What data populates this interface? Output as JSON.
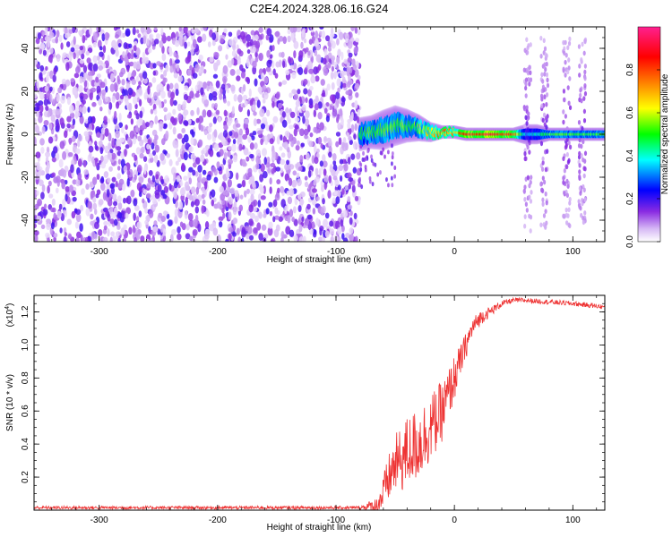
{
  "title": "C2E4.2024.328.06.16.G24",
  "colorbar": {
    "label": "Normalized spectral amplitude",
    "ticks": [
      "0.0",
      "0.2",
      "0.4",
      "0.6",
      "0.8"
    ],
    "tick_values": [
      0.0,
      0.2,
      0.4,
      0.6,
      0.8
    ],
    "range": [
      0,
      1
    ],
    "colors": [
      "#ffffff",
      "#8a2be2",
      "#0000ff",
      "#00ffff",
      "#00ff00",
      "#ffff00",
      "#ff8000",
      "#ff0000",
      "#ff0080"
    ]
  },
  "chart_data": [
    {
      "type": "heatmap",
      "xlabel": "Height of straight line (km)",
      "ylabel": "Frequency (Hz)",
      "xlim": [
        -355,
        127
      ],
      "ylim": [
        -50,
        50
      ],
      "xticks": [
        -300,
        -200,
        -100,
        0,
        100
      ],
      "xtick_labels": [
        "-300",
        "-200",
        "-100",
        "0",
        "100"
      ],
      "yticks": [
        -40,
        -20,
        0,
        20,
        40
      ],
      "ytick_labels": [
        "-40",
        "-20",
        "0",
        "20",
        "40"
      ],
      "noise_region_x": [
        -355,
        -80
      ],
      "signal_band": {
        "x": [
          -80,
          -70,
          -60,
          -50,
          -40,
          -30,
          -20,
          -10,
          0,
          10,
          30,
          50,
          60,
          70,
          80,
          100,
          127
        ],
        "center_freq": [
          0,
          1,
          2,
          4,
          4,
          3,
          1,
          1,
          1,
          0,
          0,
          0,
          0,
          0,
          0,
          0,
          0
        ],
        "half_width": [
          5,
          5,
          6,
          6,
          5,
          4,
          3,
          2,
          2,
          2,
          2,
          2,
          3,
          3,
          2,
          2,
          2
        ],
        "amplitude": [
          0.45,
          0.5,
          0.5,
          0.55,
          0.5,
          0.55,
          0.65,
          0.7,
          0.7,
          0.85,
          0.9,
          0.85,
          0.35,
          0.4,
          0.5,
          0.5,
          0.5
        ]
      },
      "vertical_streaks_x": [
        62,
        76,
        95,
        108
      ]
    },
    {
      "type": "line",
      "xlabel": "Height of straight line (km)",
      "ylabel": "SNR (10 * v/v)",
      "y_multiplier_label": "(x10",
      "y_multiplier_exponent": "4",
      "y_multiplier_suffix": ")",
      "xlim": [
        -355,
        127
      ],
      "ylim": [
        0,
        1.3
      ],
      "xticks": [
        -300,
        -200,
        -100,
        0,
        100
      ],
      "xtick_labels": [
        "-300",
        "-200",
        "-100",
        "0",
        "100"
      ],
      "yticks": [
        0.2,
        0.4,
        0.6,
        0.8,
        1.0,
        1.2
      ],
      "ytick_labels": [
        "0.2",
        "0.4",
        "0.6",
        "0.8",
        "1.0",
        "1.2"
      ],
      "line_color": "#ee3333",
      "series": [
        {
          "x": [
            -355,
            -100,
            -80,
            -65,
            -60,
            -55,
            -50,
            -45,
            -40,
            -35,
            -30,
            -25,
            -20,
            -15,
            -10,
            -5,
            0,
            5,
            10,
            15,
            20,
            25,
            30,
            40,
            50,
            60,
            80,
            100,
            127
          ],
          "values": [
            0.015,
            0.015,
            0.015,
            0.03,
            0.1,
            0.2,
            0.28,
            0.3,
            0.35,
            0.38,
            0.4,
            0.45,
            0.5,
            0.55,
            0.6,
            0.7,
            0.8,
            0.9,
            1.0,
            1.1,
            1.15,
            1.18,
            1.2,
            1.25,
            1.27,
            1.27,
            1.26,
            1.25,
            1.23
          ],
          "noise_amplitude": [
            0.01,
            0.01,
            0.01,
            0.05,
            0.12,
            0.15,
            0.18,
            0.2,
            0.22,
            0.22,
            0.22,
            0.22,
            0.2,
            0.2,
            0.18,
            0.16,
            0.14,
            0.1,
            0.08,
            0.06,
            0.05,
            0.04,
            0.03,
            0.02,
            0.015,
            0.015,
            0.015,
            0.015,
            0.015
          ]
        }
      ]
    }
  ]
}
